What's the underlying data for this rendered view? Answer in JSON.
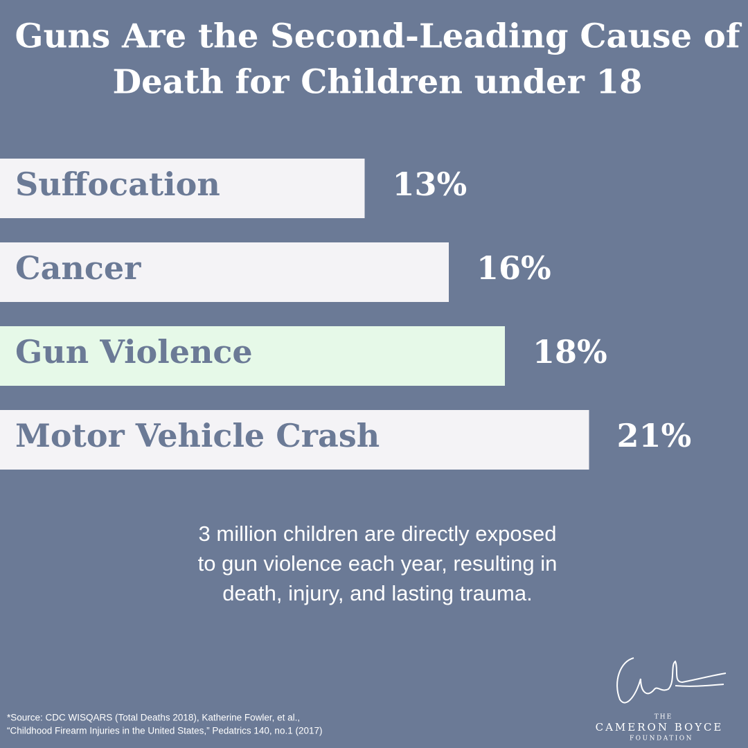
{
  "chart_data": {
    "type": "bar",
    "title": [
      "Guns Are the Second-Leading Cause of",
      "Death for Children under 18"
    ],
    "categories": [
      "Suffocation",
      "Cancer",
      "Gun Violence",
      "Motor Vehicle Crash"
    ],
    "values": [
      13,
      16,
      18,
      21
    ],
    "value_labels": [
      "13%",
      "16%",
      "18%",
      "21%"
    ],
    "colors": [
      "#f4f3f6",
      "#f4f3f6",
      "#e6f9e8",
      "#f4f3f6"
    ],
    "annotation": [
      "3 million children are directly exposed",
      "to gun violence each year, resulting in",
      "death, injury, and lasting trauma."
    ],
    "source": [
      "*Source: CDC WISQARS (Total Deaths 2018), Katherine Fowler, et al.,",
      "“Childhood Firearm Injuries in the United States,” Pedatrics 140, no.1 (2017)"
    ],
    "logo": [
      "THE",
      "CAMERON BOYCE",
      "FOUNDATION"
    ]
  }
}
